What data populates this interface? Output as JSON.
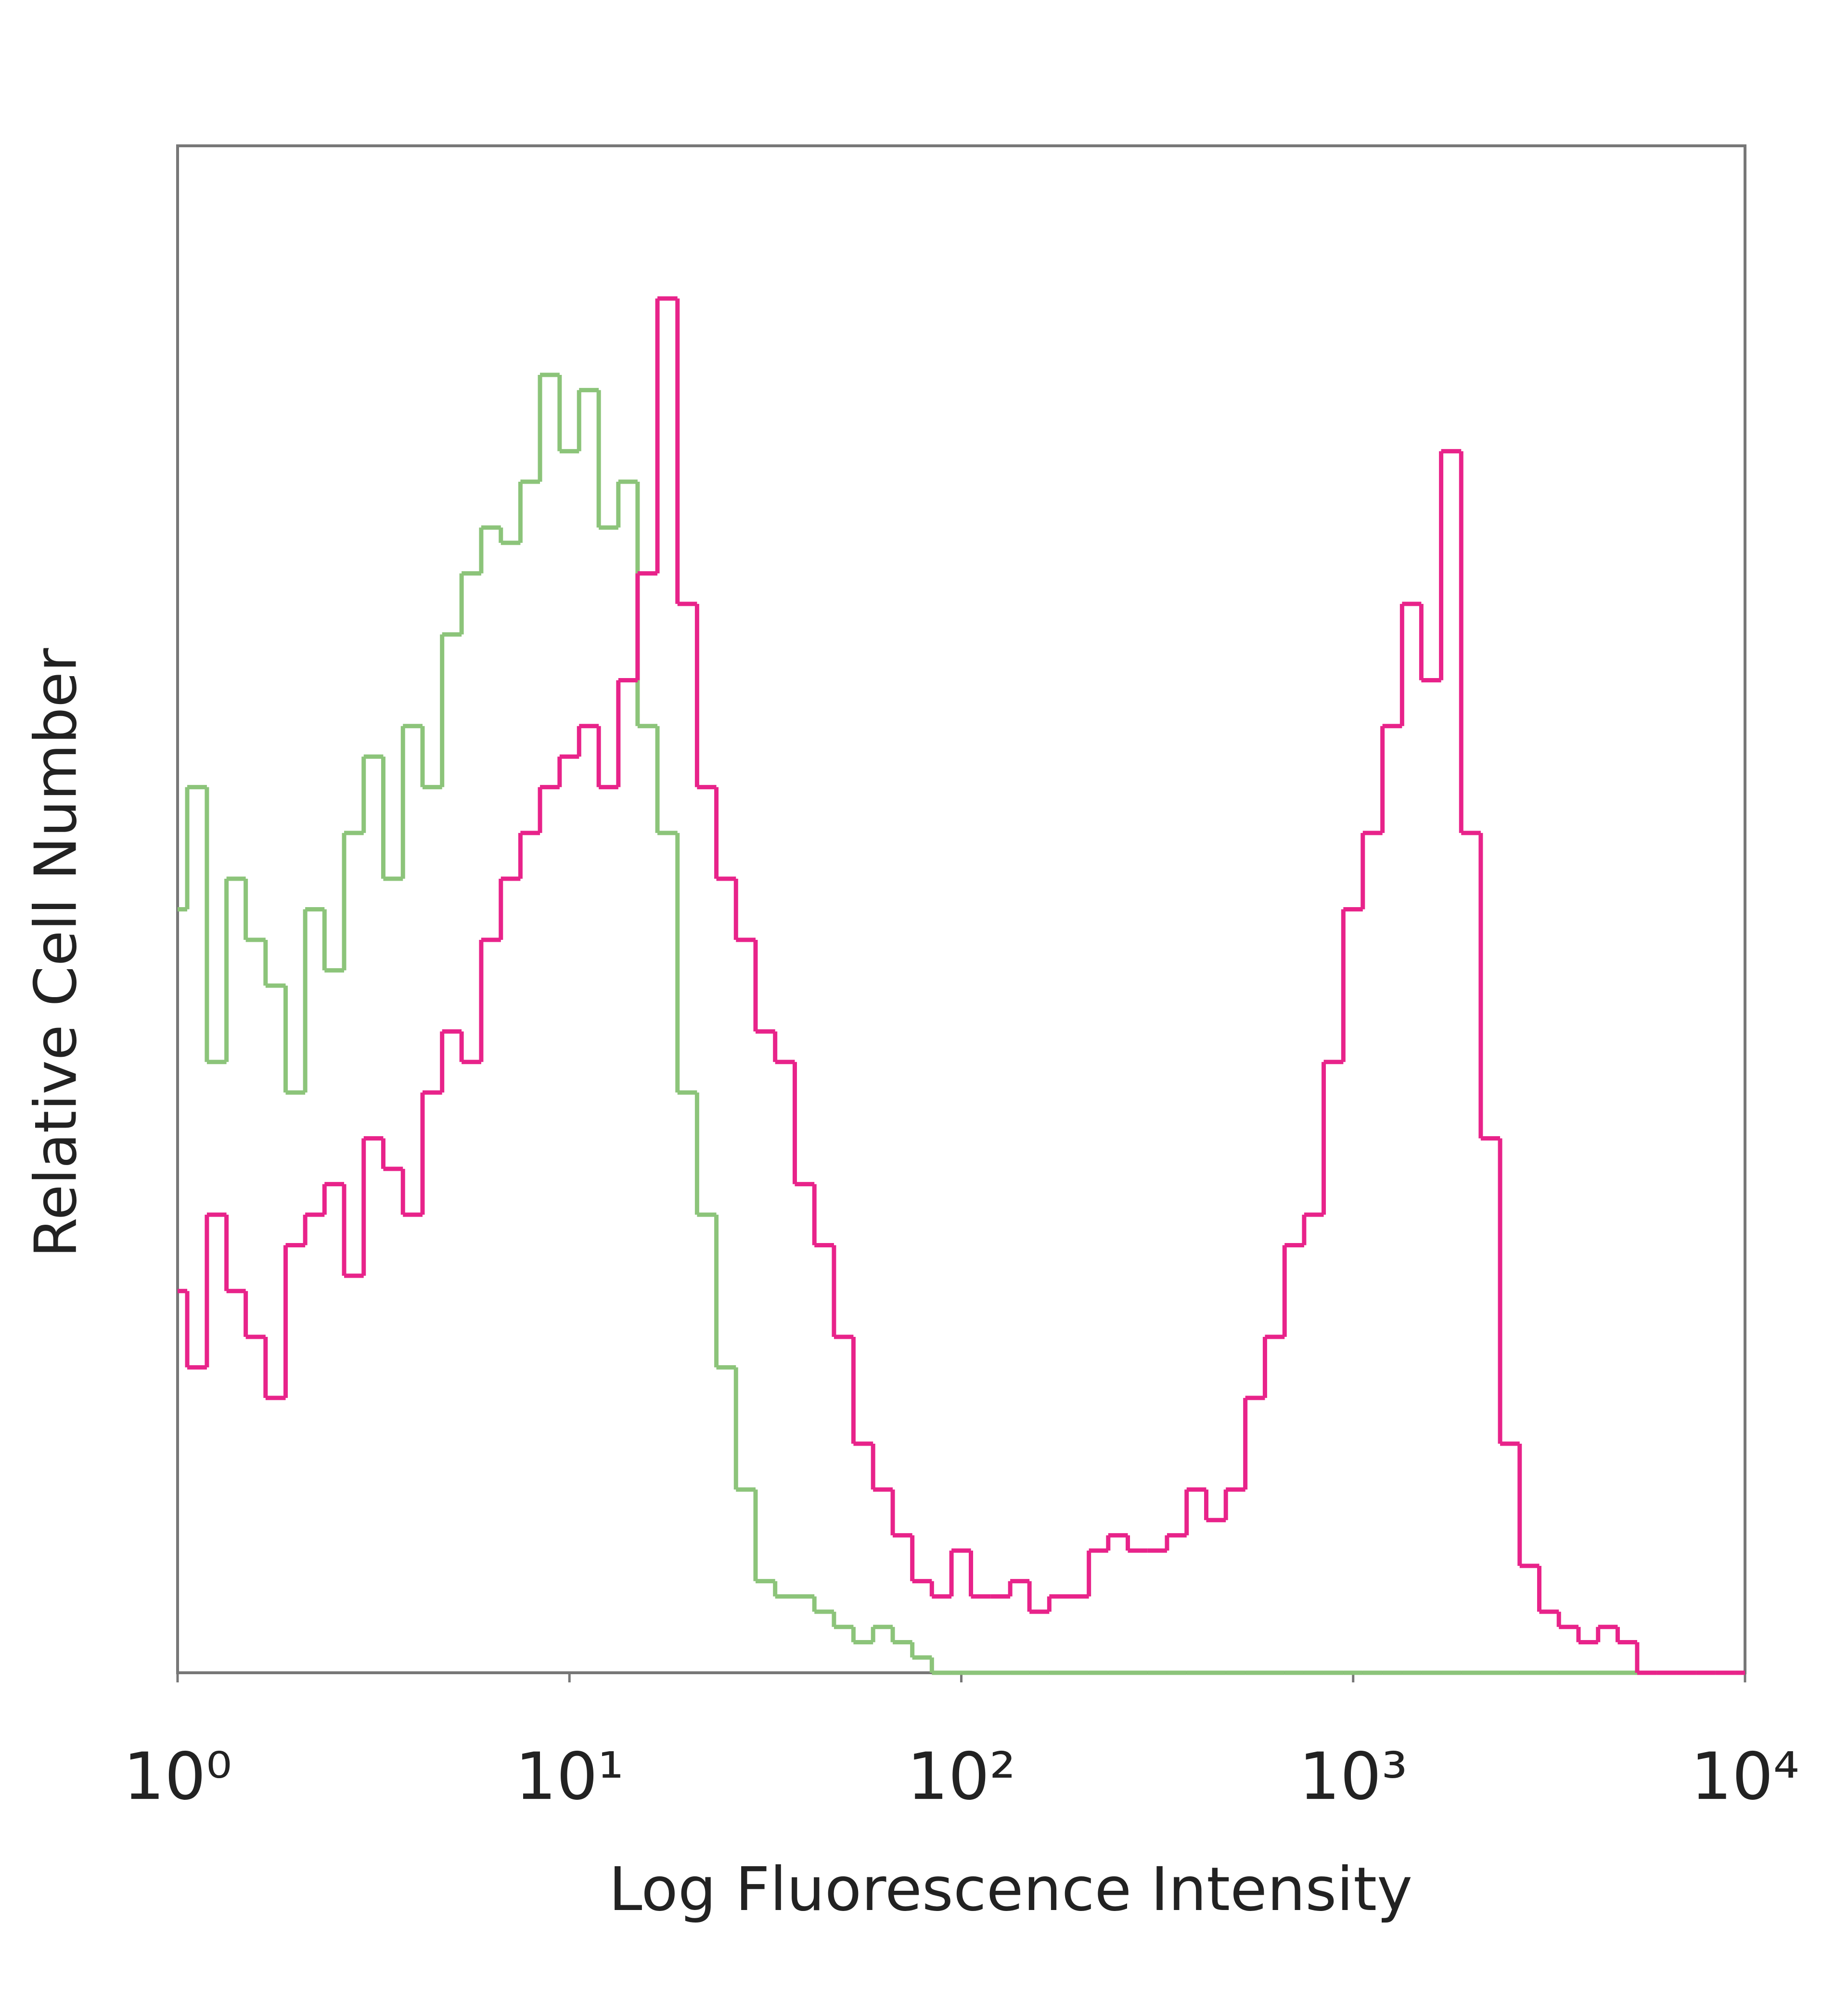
{
  "chart_data": {
    "type": "histogram",
    "x_label": "Log Fluorescence Intensity",
    "y_label": "Relative Cell Number",
    "xscale": "log",
    "xlim": [
      1,
      10000
    ],
    "xticks": [
      {
        "value": 1,
        "label": "10⁰"
      },
      {
        "value": 10,
        "label": "10¹"
      },
      {
        "value": 100,
        "label": "10²"
      },
      {
        "value": 1000,
        "label": "10³"
      },
      {
        "value": 10000,
        "label": "10⁴"
      }
    ],
    "ylim": [
      0,
      100
    ],
    "x": [
      1,
      1.12,
      1.26,
      1.41,
      1.58,
      1.78,
      2,
      2.24,
      2.51,
      2.82,
      3.16,
      3.55,
      3.98,
      4.47,
      5.01,
      5.62,
      6.31,
      7.08,
      7.94,
      8.91,
      10,
      11.2,
      12.6,
      14.1,
      15.8,
      17.8,
      20,
      22.4,
      25.1,
      28.2,
      31.6,
      35.5,
      39.8,
      44.7,
      50.1,
      56.2,
      63.1,
      70.8,
      79.4,
      89.1,
      100,
      112,
      126,
      141,
      158,
      178,
      200,
      224,
      251,
      282,
      316,
      355,
      398,
      447,
      501,
      562,
      631,
      708,
      794,
      891,
      1000,
      1120,
      1260,
      1410,
      1580,
      1780,
      2000,
      2240,
      2510,
      2820,
      3160,
      3550,
      3980,
      4470,
      5010,
      5620,
      6310,
      7080,
      7940,
      8910,
      10000
    ],
    "series": [
      {
        "color": "#8cc47a",
        "values": [
          50,
          58,
          40,
          52,
          48,
          45,
          38,
          50,
          46,
          55,
          60,
          52,
          62,
          58,
          68,
          72,
          75,
          74,
          78,
          85,
          80,
          84,
          75,
          78,
          62,
          55,
          38,
          30,
          20,
          12,
          6,
          5,
          5,
          4,
          3,
          2,
          3,
          2,
          1,
          0,
          0,
          0,
          0,
          0,
          0,
          0,
          0,
          0,
          0,
          0,
          0,
          0,
          0,
          0,
          0,
          0,
          0,
          0,
          0,
          0,
          0,
          0,
          0,
          0,
          0,
          0,
          0,
          0,
          0,
          0,
          0,
          0,
          0,
          0,
          0,
          0,
          0,
          0,
          0,
          0,
          0
        ]
      },
      {
        "color": "#e8238a",
        "values": [
          25,
          20,
          30,
          25,
          22,
          18,
          28,
          30,
          32,
          26,
          35,
          33,
          30,
          38,
          42,
          40,
          48,
          52,
          55,
          58,
          60,
          62,
          58,
          65,
          72,
          90,
          70,
          58,
          52,
          48,
          42,
          40,
          32,
          28,
          22,
          15,
          12,
          9,
          6,
          5,
          8,
          5,
          5,
          6,
          4,
          5,
          5,
          8,
          9,
          8,
          8,
          9,
          12,
          10,
          12,
          18,
          22,
          28,
          30,
          40,
          50,
          55,
          62,
          70,
          65,
          80,
          55,
          35,
          15,
          7,
          4,
          3,
          2,
          3,
          2,
          0,
          0,
          0,
          0,
          0,
          0
        ]
      }
    ]
  }
}
